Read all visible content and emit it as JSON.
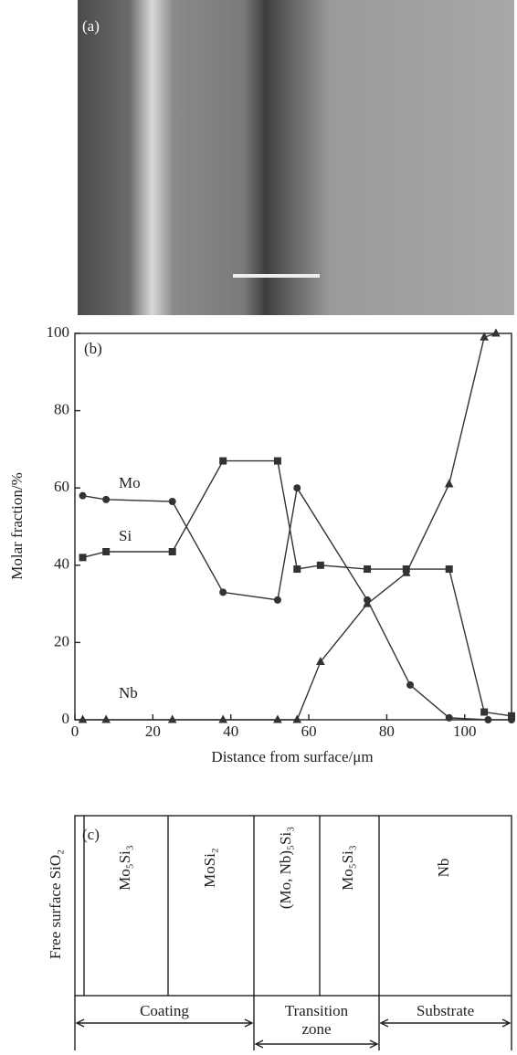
{
  "image_panel": {
    "label": "(a)"
  },
  "chart_data": {
    "type": "line",
    "label": "(b)",
    "x_label": "Distance from surface/μm",
    "y_label": "Molar fraction/%",
    "xlim": [
      0,
      112
    ],
    "ylim": [
      0,
      100
    ],
    "xticks": [
      0,
      20,
      40,
      60,
      80,
      100
    ],
    "yticks": [
      0,
      20,
      40,
      60,
      80,
      100
    ],
    "series": [
      {
        "name": "Mo",
        "color": "#333333",
        "marker": "circle",
        "x": [
          2,
          8,
          25,
          38,
          52,
          57,
          75,
          86,
          96,
          106,
          112
        ],
        "values": [
          58,
          57,
          56.5,
          33,
          31,
          60,
          31,
          9,
          0.5,
          0,
          0
        ]
      },
      {
        "name": "Si",
        "color": "#333333",
        "marker": "square",
        "x": [
          2,
          8,
          25,
          38,
          52,
          57,
          63,
          75,
          85,
          96,
          105,
          112
        ],
        "values": [
          42,
          43.5,
          43.5,
          67,
          67,
          39,
          40,
          39,
          39,
          39,
          2,
          1
        ]
      },
      {
        "name": "Nb",
        "color": "#333333",
        "marker": "triangle",
        "x": [
          2,
          8,
          25,
          38,
          52,
          57,
          63,
          75,
          85,
          96,
          105,
          108
        ],
        "values": [
          0,
          0,
          0,
          0,
          0,
          0,
          15,
          30,
          38,
          61,
          99,
          100
        ]
      }
    ]
  },
  "diagram": {
    "label": "(c)",
    "layers": [
      "Free surface SiO₂",
      "Mo₅Si₃",
      "MoSi₂",
      "(Mo, Nb)₅Si₃",
      "Mo₅Si₃",
      "Nb"
    ],
    "zones": [
      {
        "lines": [
          "Coating"
        ]
      },
      {
        "lines": [
          "Transition",
          "zone"
        ]
      },
      {
        "lines": [
          "Substrate"
        ]
      }
    ]
  }
}
